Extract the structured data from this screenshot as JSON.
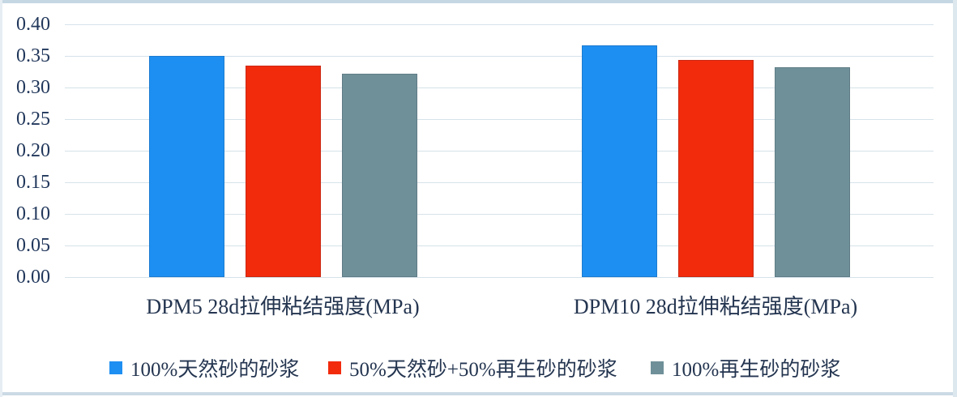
{
  "chart_data": {
    "type": "bar",
    "categories": [
      "DPM5 28d拉伸粘结强度(MPa)",
      "DPM10 28d拉伸粘结强度(MPa)"
    ],
    "series": [
      {
        "name": "100%天然砂的砂浆",
        "color": "#1e8ff2",
        "values": [
          0.35,
          0.367
        ]
      },
      {
        "name": "50%天然砂+50%再生砂的砂浆",
        "color": "#f22b0d",
        "values": [
          0.335,
          0.344
        ]
      },
      {
        "name": "100%再生砂的砂浆",
        "color": "#6f9099",
        "values": [
          0.322,
          0.332
        ]
      }
    ],
    "ylim": [
      0,
      0.4
    ],
    "y_ticks": [
      "0.00",
      "0.05",
      "0.10",
      "0.15",
      "0.20",
      "0.25",
      "0.30",
      "0.35",
      "0.40"
    ],
    "ylabel": "",
    "xlabel": "",
    "title": "",
    "grid": true,
    "legend_position": "bottom"
  },
  "colors": {
    "gridline": "#d5e2ea",
    "tick_text": "#21375b",
    "label_text": "#243550",
    "frame": "#c5d7e3"
  }
}
